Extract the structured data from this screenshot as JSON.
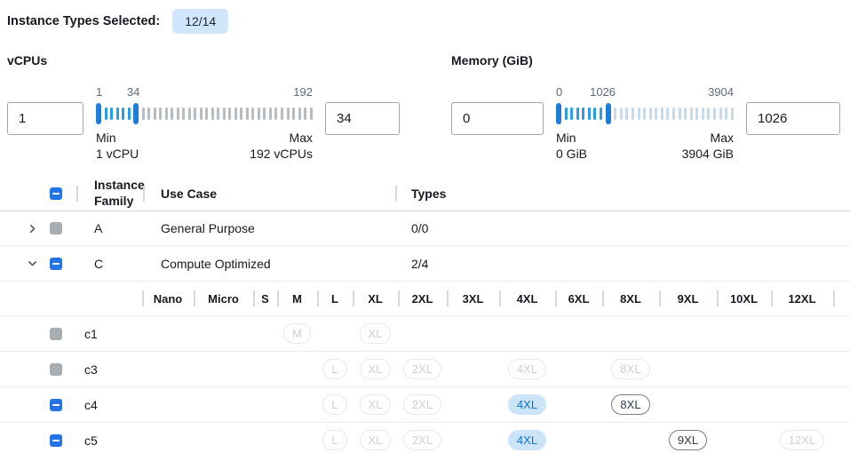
{
  "topbar": {
    "label": "Instance Types Selected:",
    "badge": "12/14"
  },
  "filters": {
    "vcpu": {
      "title": "vCPUs",
      "low_value": "1",
      "high_value": "34",
      "scale": {
        "low": "1",
        "mid": "34",
        "high": "192"
      },
      "min": 1,
      "max": 192,
      "from": 1,
      "to": 34,
      "min_label": "Min",
      "min_text": "1 vCPU",
      "max_label": "Max",
      "max_text": "192 vCPUs",
      "unselected_tick_color": "#b6bcc1",
      "tick_count": 37
    },
    "memory": {
      "title": "Memory (GiB)",
      "low_value": "0",
      "high_value": "1026",
      "scale": {
        "low": "0",
        "mid": "1026",
        "high": "3904"
      },
      "min": 0,
      "max": 3904,
      "from": 0,
      "to": 1026,
      "min_label": "Min",
      "min_text": "0 GiB",
      "max_label": "Max",
      "max_text": "3904 GiB",
      "unselected_tick_color": "#c9d8eb",
      "tick_count": 30
    }
  },
  "colors": {
    "accent_blue": "#2474e8",
    "slider_selected_tick": "#2b9ce8",
    "slider_handle": "#1d7fd8",
    "badge_background": "#cfe6fb",
    "pill_selected_background": "#cbe4fa",
    "pill_selected_text": "#0f73cc",
    "disabled_checkbox_gray": "#a9aeb3"
  },
  "table": {
    "headers": {
      "family": "Instance Family",
      "use_case": "Use Case",
      "types": "Types"
    },
    "size_columns": [
      "Nano",
      "Micro",
      "S",
      "M",
      "L",
      "XL",
      "2XL",
      "3XL",
      "4XL",
      "6XL",
      "8XL",
      "9XL",
      "10XL",
      "12XL"
    ],
    "family_rows": [
      {
        "name": "A",
        "use_case": "General Purpose",
        "types": "0/0",
        "expanded": false,
        "checkbox": "disabled"
      },
      {
        "name": "C",
        "use_case": "Compute Optimized",
        "types": "2/4",
        "expanded": true,
        "checkbox": "indeterminate"
      }
    ],
    "instance_rows": [
      {
        "name": "c1",
        "checkbox": "disabled",
        "pills": [
          {
            "size": "M",
            "state": "disabled"
          },
          {
            "size": "XL",
            "state": "disabled"
          }
        ]
      },
      {
        "name": "c3",
        "checkbox": "disabled",
        "pills": [
          {
            "size": "L",
            "state": "disabled"
          },
          {
            "size": "XL",
            "state": "disabled"
          },
          {
            "size": "2XL",
            "state": "disabled"
          },
          {
            "size": "4XL",
            "state": "disabled"
          },
          {
            "size": "8XL",
            "state": "disabled"
          }
        ]
      },
      {
        "name": "c4",
        "checkbox": "indeterminate",
        "pills": [
          {
            "size": "L",
            "state": "disabled"
          },
          {
            "size": "XL",
            "state": "disabled"
          },
          {
            "size": "2XL",
            "state": "disabled"
          },
          {
            "size": "4XL",
            "state": "selected"
          },
          {
            "size": "8XL",
            "state": "enabled"
          }
        ]
      },
      {
        "name": "c5",
        "checkbox": "indeterminate",
        "pills": [
          {
            "size": "L",
            "state": "disabled"
          },
          {
            "size": "XL",
            "state": "disabled"
          },
          {
            "size": "2XL",
            "state": "disabled"
          },
          {
            "size": "4XL",
            "state": "selected"
          },
          {
            "size": "9XL",
            "state": "enabled"
          },
          {
            "size": "12XL",
            "state": "disabled"
          }
        ]
      }
    ]
  }
}
